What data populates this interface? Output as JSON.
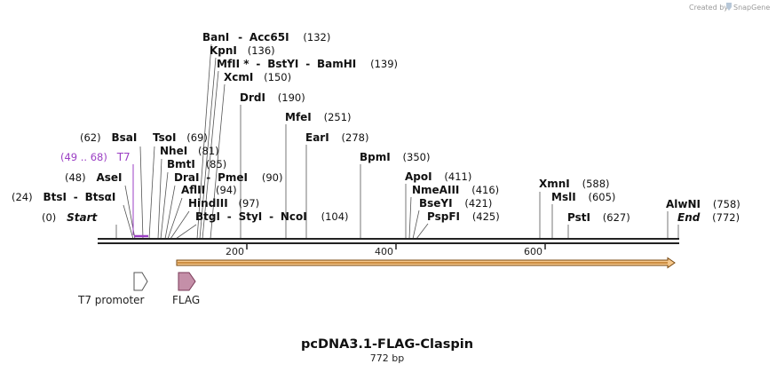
{
  "credit": "Created by",
  "brand": "SnapGene",
  "title": "pcDNA3.1-FLAG-Claspin",
  "length_label": "772 bp",
  "colors": {
    "backbone": "#222222",
    "t7_site": "#9b3fc4",
    "orf_fill": "#f6c88c",
    "orf_stroke": "#7a4a10",
    "flag_fill": "#c48fa8",
    "promoter_fill": "#ffffff"
  },
  "ticks": [
    "200",
    "400",
    "600"
  ],
  "sites": [
    {
      "name": "Start",
      "pos": "(0)",
      "italic": true
    },
    {
      "name": "BtsI",
      "sep": "-",
      "name2": "BtsαI",
      "pos": "(24)"
    },
    {
      "name": "AseI",
      "pos": "(48)"
    },
    {
      "name": "T7",
      "pos": "(49 .. 68)",
      "purple": true
    },
    {
      "name": "BsaI",
      "pos": "(62)"
    },
    {
      "name": "TsoI",
      "pos": "(69)"
    },
    {
      "name": "NheI",
      "pos": "(81)"
    },
    {
      "name": "BmtI",
      "pos": "(85)"
    },
    {
      "name": "DraI",
      "sep": "-",
      "name2": "PmeI",
      "pos": "(90)"
    },
    {
      "name": "AflII",
      "pos": "(94)"
    },
    {
      "name": "HindIII",
      "pos": "(97)"
    },
    {
      "name": "BtgI",
      "sep": "-",
      "name2": "StyI",
      "sep2": "-",
      "name3": "NcoI",
      "pos": "(104)"
    },
    {
      "name": "BanI",
      "sep": "-",
      "name2": "Acc65I",
      "pos": "(132)"
    },
    {
      "name": "KpnI",
      "pos": "(136)"
    },
    {
      "name": "MfII *",
      "sep": "-",
      "name2": "BstYI",
      "sep2": "-",
      "name3": "BamHI",
      "pos": "(139)"
    },
    {
      "name": "XcmI",
      "pos": "(150)"
    },
    {
      "name": "DrdI",
      "pos": "(190)"
    },
    {
      "name": "MfeI",
      "pos": "(251)"
    },
    {
      "name": "EarI",
      "pos": "(278)"
    },
    {
      "name": "BpmI",
      "pos": "(350)"
    },
    {
      "name": "ApoI",
      "pos": "(411)"
    },
    {
      "name": "NmeAIII",
      "pos": "(416)"
    },
    {
      "name": "BseYI",
      "pos": "(421)"
    },
    {
      "name": "PspFI",
      "pos": "(425)"
    },
    {
      "name": "XmnI",
      "pos": "(588)"
    },
    {
      "name": "MslI",
      "pos": "(605)"
    },
    {
      "name": "PstI",
      "pos": "(627)"
    },
    {
      "name": "AlwNI",
      "pos": "(758)"
    },
    {
      "name": "End",
      "pos": "(772)",
      "italic": true
    }
  ],
  "features": [
    {
      "name": "T7 promoter",
      "type": "promoter"
    },
    {
      "name": "FLAG",
      "type": "tag"
    }
  ]
}
